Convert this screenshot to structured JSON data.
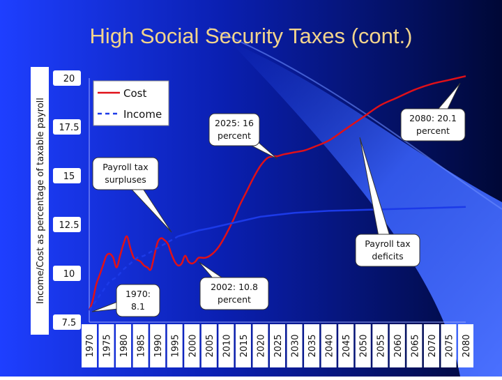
{
  "slide": {
    "title": "High Social Security Taxes (cont.)",
    "colors": {
      "background_left": "#1a3cff",
      "background_right": "#000a40",
      "cost": "#e01018",
      "income": "#1c3ae8",
      "title": "#f2d48c"
    }
  },
  "chart_data": {
    "type": "line",
    "ylabel": "Income/Cost as percentage of taxable payroll",
    "yticks": [
      "20",
      "17.5",
      "15",
      "12.5",
      "10",
      "7.5"
    ],
    "ylim": [
      7.5,
      20
    ],
    "xlim": [
      1970,
      2080
    ],
    "xticks": [
      "1970",
      "1975",
      "1980",
      "1985",
      "1990",
      "1995",
      "2000",
      "2005",
      "2010",
      "2015",
      "2020",
      "2025",
      "2030",
      "2035",
      "2040",
      "2045",
      "2050",
      "2055",
      "2060",
      "2065",
      "2070",
      "2075",
      "2080"
    ],
    "legend": {
      "position": "top-left",
      "entries": [
        "Cost",
        "Income"
      ]
    },
    "series": [
      {
        "name": "Cost",
        "style": "solid",
        "x": [
          1970,
          1971,
          1972,
          1973,
          1974,
          1975,
          1976,
          1977,
          1978,
          1979,
          1980,
          1981,
          1982,
          1983,
          1984,
          1985,
          1986,
          1987,
          1988,
          1989,
          1990,
          1991,
          1992,
          1993,
          1994,
          1995,
          1996,
          1997,
          1998,
          1999,
          2000,
          2001,
          2002,
          2004,
          2006,
          2008,
          2010,
          2012,
          2014,
          2016,
          2018,
          2020,
          2022,
          2024,
          2025,
          2027,
          2030,
          2033,
          2036,
          2040,
          2045,
          2050,
          2055,
          2060,
          2065,
          2070,
          2075,
          2080
        ],
        "values": [
          8.1,
          8.6,
          9.4,
          9.9,
          10.4,
          10.9,
          11.0,
          10.8,
          10.3,
          10.9,
          11.5,
          11.9,
          11.3,
          10.8,
          10.7,
          10.6,
          10.4,
          10.3,
          10.2,
          10.9,
          11.6,
          11.8,
          11.7,
          11.5,
          11.0,
          10.6,
          10.4,
          10.5,
          10.9,
          10.6,
          10.5,
          10.6,
          10.8,
          10.8,
          11.0,
          11.4,
          12.0,
          12.7,
          13.5,
          14.2,
          14.9,
          15.5,
          15.9,
          16.0,
          16.0,
          16.1,
          16.2,
          16.3,
          16.5,
          16.8,
          17.4,
          18.0,
          18.6,
          19.0,
          19.4,
          19.7,
          19.9,
          20.1
        ]
      },
      {
        "name": "Income",
        "style": "dashed-then-solid",
        "x": [
          1970,
          1972,
          1974,
          1976,
          1978,
          1980,
          1982,
          1984,
          1986,
          1988,
          1990,
          1992,
          1994,
          1996,
          1998,
          2000,
          2002,
          2005,
          2010,
          2015,
          2020,
          2025,
          2030,
          2040,
          2050,
          2060,
          2070,
          2080
        ],
        "values": [
          8.1,
          8.6,
          9.1,
          9.6,
          9.8,
          10.2,
          10.5,
          10.8,
          10.9,
          11.1,
          11.3,
          11.5,
          11.7,
          11.9,
          12.0,
          12.1,
          12.2,
          12.3,
          12.5,
          12.7,
          12.9,
          13.0,
          13.1,
          13.2,
          13.25,
          13.3,
          13.35,
          13.4
        ]
      }
    ],
    "annotations": [
      {
        "lines": [
          "2025: 16",
          "percent"
        ]
      },
      {
        "lines": [
          "2080: 20.1",
          "percent"
        ]
      },
      {
        "lines": [
          "Payroll tax",
          "surpluses"
        ]
      },
      {
        "lines": [
          "Payroll tax",
          "deficits"
        ]
      },
      {
        "lines": [
          "1970:",
          "8.1"
        ]
      },
      {
        "lines": [
          "2002: 10.8",
          "percent"
        ]
      }
    ]
  }
}
